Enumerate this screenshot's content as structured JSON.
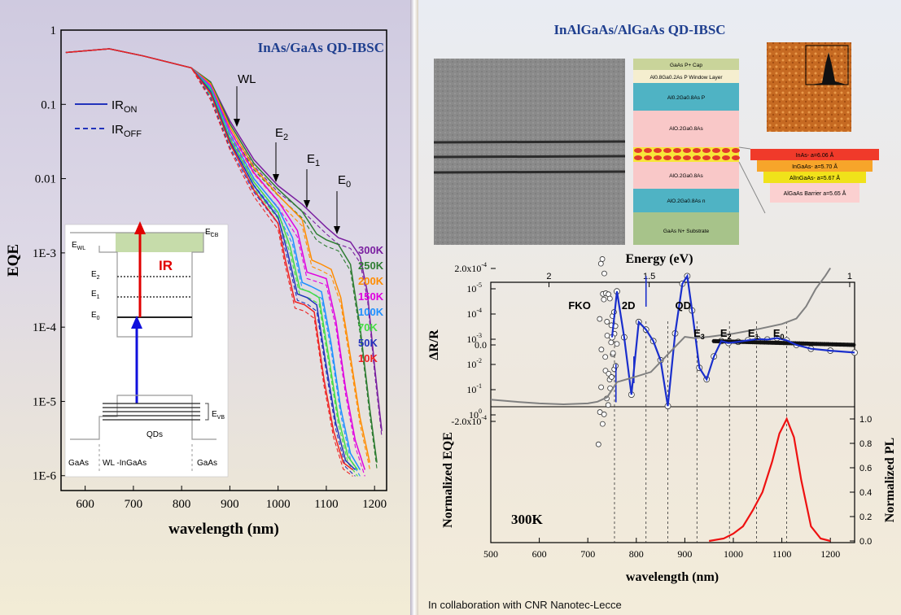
{
  "left_chart": {
    "title": "InAs/GaAs QD-IBSC",
    "ylabel": "EQE",
    "xlabel": "wavelength (nm)",
    "x_ticks": [
      "600",
      "700",
      "800",
      "900",
      "1000",
      "1100",
      "1200"
    ],
    "y_ticks": [
      "1",
      "0.1",
      "0.01",
      "1E-3",
      "1E-4",
      "1E-5",
      "1E-6"
    ],
    "legend_on": "IR",
    "legend_on_sub": "ON",
    "legend_off": "IR",
    "legend_off_sub": "OFF",
    "annotations": {
      "wl": "WL",
      "e2": "E",
      "e2_sub": "2",
      "e1": "E",
      "e1_sub": "1",
      "e0": "E",
      "e0_sub": "0"
    },
    "inset": {
      "ewl": "E",
      "ewl_sub": "WL",
      "ecb": "E",
      "ecb_sub": "CB",
      "ir": "IR",
      "e2": "E",
      "e2_sub": "2",
      "e1": "E",
      "e1_sub": "1",
      "e0": "E",
      "e0_sub": "0",
      "evb": "E",
      "evb_sub": "VB",
      "qds": "QDs",
      "gaas_left": "GaAs",
      "wl_ingaas": "WL -InGaAs",
      "gaas_right": "GaAs"
    }
  },
  "chart_data": [
    {
      "type": "line",
      "title": "InAs/GaAs QD-IBSC",
      "xlabel": "wavelength (nm)",
      "ylabel": "EQE",
      "xlim": [
        550,
        1225
      ],
      "ylim": [
        1e-06,
        1
      ],
      "yscale": "log",
      "legend": [
        "IR ON (solid)",
        "IR OFF (dashed)"
      ],
      "series": [
        {
          "name": "300K",
          "color": "#7a1fa0",
          "x": [
            560,
            650,
            720,
            820,
            860,
            900,
            950,
            1000,
            1050,
            1100,
            1125,
            1150,
            1170,
            1185,
            1200,
            1215
          ],
          "y": [
            0.5,
            0.56,
            0.45,
            0.31,
            0.2,
            0.06,
            0.018,
            0.008,
            0.0045,
            0.0022,
            0.0016,
            0.0014,
            0.0009,
            0.0003,
            3e-05,
            4e-06
          ]
        },
        {
          "name": "250K",
          "color": "#2e7d32",
          "x": [
            560,
            650,
            720,
            820,
            860,
            900,
            950,
            1000,
            1050,
            1080,
            1100,
            1125,
            1150,
            1170,
            1190,
            1205
          ],
          "y": [
            0.5,
            0.56,
            0.45,
            0.31,
            0.2,
            0.055,
            0.016,
            0.0072,
            0.0036,
            0.0018,
            0.0015,
            0.0013,
            0.0007,
            0.0001,
            8e-06,
            1.5e-06
          ]
        },
        {
          "name": "200K",
          "color": "#ff8c00",
          "x": [
            560,
            650,
            720,
            820,
            860,
            900,
            950,
            1000,
            1050,
            1070,
            1090,
            1110,
            1130,
            1150,
            1170,
            1190
          ],
          "y": [
            0.5,
            0.56,
            0.45,
            0.31,
            0.19,
            0.05,
            0.014,
            0.006,
            0.0028,
            0.0008,
            0.0007,
            0.0006,
            0.00025,
            4e-05,
            6e-06,
            1.5e-06
          ]
        },
        {
          "name": "150K",
          "color": "#e000e0",
          "x": [
            560,
            650,
            720,
            820,
            860,
            900,
            950,
            1000,
            1040,
            1060,
            1080,
            1100,
            1120,
            1140,
            1160,
            1180
          ],
          "y": [
            0.5,
            0.56,
            0.45,
            0.31,
            0.18,
            0.045,
            0.012,
            0.005,
            0.002,
            0.00055,
            0.0005,
            0.00045,
            0.00012,
            1.5e-05,
            3e-06,
            1.2e-06
          ]
        },
        {
          "name": "100K",
          "color": "#1e90ff",
          "x": [
            560,
            650,
            720,
            820,
            860,
            900,
            950,
            1000,
            1030,
            1050,
            1070,
            1090,
            1110,
            1130,
            1150,
            1170
          ],
          "y": [
            0.5,
            0.56,
            0.45,
            0.31,
            0.17,
            0.04,
            0.01,
            0.004,
            0.0016,
            0.0004,
            0.00035,
            0.0003,
            6e-05,
            8e-06,
            2e-06,
            1.2e-06
          ]
        },
        {
          "name": "70K",
          "color": "#44dd44",
          "x": [
            560,
            650,
            720,
            820,
            860,
            900,
            950,
            1000,
            1025,
            1045,
            1065,
            1085,
            1105,
            1125,
            1145,
            1165
          ],
          "y": [
            0.5,
            0.56,
            0.45,
            0.31,
            0.16,
            0.035,
            0.009,
            0.0035,
            0.0012,
            0.00033,
            0.0003,
            0.00025,
            4e-05,
            6e-06,
            1.8e-06,
            1.2e-06
          ]
        },
        {
          "name": "50K",
          "color": "#2233bb",
          "x": [
            560,
            650,
            720,
            820,
            860,
            900,
            950,
            1000,
            1020,
            1040,
            1060,
            1080,
            1100,
            1120,
            1140,
            1160
          ],
          "y": [
            0.5,
            0.56,
            0.45,
            0.31,
            0.15,
            0.032,
            0.008,
            0.003,
            0.001,
            0.00028,
            0.00025,
            0.0002,
            3e-05,
            5e-06,
            1.6e-06,
            1.2e-06
          ]
        },
        {
          "name": "10K",
          "color": "#ee2222",
          "x": [
            560,
            650,
            720,
            820,
            860,
            900,
            950,
            1000,
            1015,
            1035,
            1055,
            1075,
            1095,
            1115,
            1135,
            1155
          ],
          "y": [
            0.5,
            0.56,
            0.45,
            0.31,
            0.14,
            0.03,
            0.007,
            0.0025,
            0.0008,
            0.00022,
            0.0002,
            0.00016,
            2e-05,
            4e-06,
            1.5e-06,
            1.2e-06
          ]
        }
      ]
    },
    {
      "type": "line",
      "title": "",
      "xlabel": "Energy (eV)",
      "ylabel": "ΔR/R",
      "top_axis_ticks": [
        "2",
        "1.5",
        "1"
      ],
      "y_ticks": [
        "2.0x10",
        "0.0",
        "-2.0x10"
      ],
      "y_tick_exponent": "-4",
      "labels": [
        "FKO",
        "2D",
        "QD",
        "E3",
        "E2",
        "E1",
        "E0"
      ],
      "series": [
        {
          "name": "fit",
          "x": [
            750,
            760,
            775,
            790,
            805,
            820,
            835,
            850,
            865,
            880,
            895,
            905,
            915,
            930,
            945,
            960,
            975,
            990,
            1010,
            1030,
            1050,
            1070,
            1090,
            1110,
            1130,
            1160,
            1200,
            1250
          ],
          "y": [
            0.2,
            1.4,
            0.2,
            -1.3,
            0.6,
            0.4,
            0.1,
            -0.4,
            -1.6,
            0.3,
            1.6,
            1.8,
            0.9,
            -0.6,
            -0.9,
            -0.3,
            0.1,
            0.05,
            0.08,
            0.12,
            0.15,
            0.14,
            0.18,
            0.12,
            0.0,
            -0.1,
            -0.15,
            -0.2
          ]
        }
      ]
    },
    {
      "type": "line",
      "title": "",
      "xlabel": "wavelength (nm)",
      "ylabel": "Normalized EQE",
      "y2label": "Normalized PL",
      "annotation": "300K",
      "x_ticks": [
        "500",
        "600",
        "700",
        "800",
        "900",
        "1000",
        "1100",
        "1200"
      ],
      "y_ticks": [
        "10",
        "10",
        "10",
        "10",
        "10",
        "10"
      ],
      "y_tick_exponents": [
        "0",
        "-1",
        "-2",
        "-3",
        "-4",
        "-5"
      ],
      "y2_ticks": [
        "1.0",
        "0.8",
        "0.6",
        "0.4",
        "0.2",
        "0.0"
      ],
      "series": [
        {
          "name": "Normalized EQE",
          "color": "#808080",
          "x": [
            500,
            550,
            600,
            650,
            700,
            720,
            740,
            760,
            800,
            830,
            860,
            880,
            900,
            920,
            950,
            1000,
            1050,
            1100,
            1130,
            1150,
            1170,
            1190,
            1200
          ],
          "y": [
            0.25,
            0.3,
            0.35,
            0.38,
            0.35,
            0.3,
            0.2,
            0.05,
            0.03,
            0.02,
            0.005,
            0.002,
            0.0008,
            0.0009,
            0.0008,
            0.0006,
            0.0004,
            0.00025,
            0.00015,
            5e-05,
            1e-05,
            3e-06,
            1.5e-06
          ]
        },
        {
          "name": "Normalized PL",
          "color": "#ee1111",
          "x": [
            950,
            980,
            1000,
            1020,
            1040,
            1060,
            1080,
            1095,
            1110,
            1125,
            1140,
            1160,
            1180,
            1200
          ],
          "y": [
            0.0,
            0.02,
            0.06,
            0.12,
            0.25,
            0.4,
            0.65,
            0.88,
            1.0,
            0.85,
            0.5,
            0.12,
            0.02,
            0.0
          ]
        }
      ]
    }
  ],
  "right_title": "InAlGaAs/AlGaAs QD-IBSC",
  "layers": [
    "GaAs P+ Cap",
    "Al0.8Ga0.2As P Window Layer",
    "Al0.2Ga0.8As P",
    "AlO.2Ga0.8As",
    "AlO.2Ga0.8As",
    "AlO.2Ga0.8As n",
    "GaAs N+ Substrate"
  ],
  "strain_boxes": [
    "InAs- a=6.06 Å",
    "InGaAs- a=5.70 Å",
    "AlInGaAs- a=5.67 Å",
    "AlGaAs Barrier a=5.65 Å"
  ],
  "energy_axis_label": "Energy (eV)",
  "credit": "In collaboration with CNR Nanotec-Lecce",
  "colors": {
    "title_blue": "#1f3f8f",
    "ir_red": "#e00000"
  }
}
